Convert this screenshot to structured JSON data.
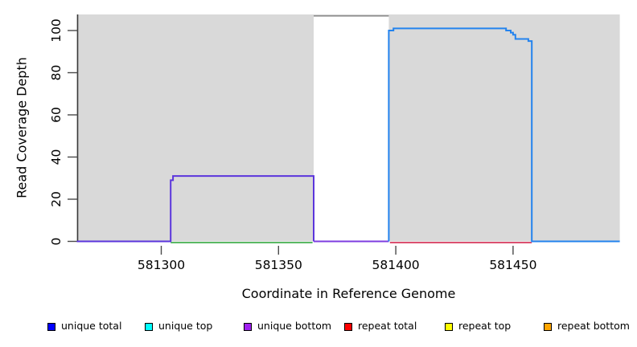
{
  "chart_data": {
    "type": "line",
    "subtype": "step-coverage-plot",
    "title": "",
    "xlabel": "Coordinate in Reference Genome",
    "ylabel": "Read Coverage Depth",
    "xlim": [
      581264,
      581495.5
    ],
    "ylim": [
      0,
      107.5
    ],
    "grid": false,
    "panel_background": "#ffffff",
    "shaded_region_color": "#d9d9d9",
    "x_ticks": [
      {
        "value": 581300,
        "label": "581300"
      },
      {
        "value": 581350,
        "label": "581350"
      },
      {
        "value": 581400,
        "label": "581400"
      },
      {
        "value": 581450,
        "label": "581450"
      }
    ],
    "y_ticks": [
      {
        "value": 0,
        "label": "0"
      },
      {
        "value": 20,
        "label": "20"
      },
      {
        "value": 40,
        "label": "40"
      },
      {
        "value": 60,
        "label": "60"
      },
      {
        "value": 80,
        "label": "80"
      },
      {
        "value": 100,
        "label": "100"
      }
    ],
    "shaded_regions": [
      {
        "name": "unique-region-left",
        "x1": 581264,
        "x2": 581365,
        "color": "#d9d9d9"
      },
      {
        "name": "unique-region-right",
        "x1": 581397,
        "x2": 581495.5,
        "color": "#d9d9d9"
      }
    ],
    "series": [
      {
        "name": "unique-top-baseline",
        "color": "#5ab964",
        "dy": 1.5,
        "points": [
          [
            581304,
            0
          ],
          [
            581364.5,
            0
          ]
        ]
      },
      {
        "name": "repeat-total-baseline",
        "color": "#dc5070",
        "dy": 1.5,
        "points": [
          [
            581397.5,
            0
          ],
          [
            581458,
            0
          ]
        ]
      },
      {
        "name": "clipped-coverage-top-line",
        "color": "#8f8f8f",
        "points": [
          [
            581365,
            107
          ],
          [
            581397,
            107
          ]
        ]
      },
      {
        "name": "unique-bottom-block",
        "color": "#5b35dc",
        "points": [
          [
            581264,
            0
          ],
          [
            581304,
            0
          ],
          [
            581304,
            29
          ],
          [
            581305,
            29
          ],
          [
            581305,
            31
          ],
          [
            581365,
            31
          ],
          [
            581365,
            0
          ]
        ]
      },
      {
        "name": "unique-bottom-gap-baseline",
        "color": "#7d3ce0",
        "points": [
          [
            581365,
            0
          ],
          [
            581397,
            0
          ]
        ]
      },
      {
        "name": "unique-total-block",
        "color": "#2383ee",
        "points": [
          [
            581397,
            0
          ],
          [
            581397,
            100
          ],
          [
            581399,
            100
          ],
          [
            581399,
            101
          ],
          [
            581447,
            101
          ],
          [
            581447,
            100
          ],
          [
            581449,
            100
          ],
          [
            581449,
            99
          ],
          [
            581450,
            99
          ],
          [
            581450,
            98
          ],
          [
            581451,
            98
          ],
          [
            581451,
            96
          ],
          [
            581456.5,
            96
          ],
          [
            581456.5,
            95
          ],
          [
            581458,
            95
          ],
          [
            581458,
            0
          ],
          [
            581495.5,
            0
          ]
        ]
      }
    ]
  },
  "legend": {
    "items": [
      {
        "label": "unique total",
        "color": "#0000ff"
      },
      {
        "label": "unique top",
        "color": "#00ffff"
      },
      {
        "label": "unique bottom",
        "color": "#a020f0"
      },
      {
        "label": "repeat total",
        "color": "#ff0000"
      },
      {
        "label": "repeat top",
        "color": "#ffff00"
      },
      {
        "label": "repeat bottom",
        "color": "#ffa500"
      }
    ]
  }
}
